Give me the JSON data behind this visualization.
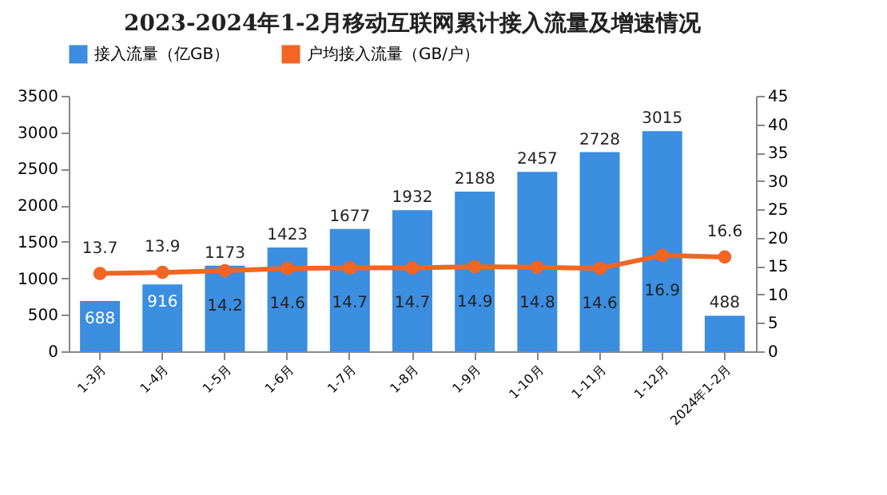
{
  "chart_data": {
    "type": "bar",
    "title": "2023-2024年1-2月移动互联网累计接入流量及增速情况",
    "categories": [
      "1-3月",
      "1-4月",
      "1-5月",
      "1-6月",
      "1-7月",
      "1-8月",
      "1-9月",
      "1-10月",
      "1-11月",
      "1-12月",
      "2024年1-2月"
    ],
    "series": [
      {
        "name": "接入流量（亿GB）",
        "color": "#3b8ee0",
        "values": [
          688,
          916,
          1173,
          1423,
          1677,
          1932,
          2188,
          2457,
          2728,
          3015,
          488
        ]
      },
      {
        "name": "户均接入流量（GB/户）",
        "type": "line",
        "axis": "y2",
        "color": "#f26522",
        "values": [
          13.7,
          13.9,
          14.2,
          14.6,
          14.7,
          14.7,
          14.9,
          14.8,
          14.6,
          16.9,
          16.6
        ]
      }
    ],
    "ylim": [
      0,
      3500
    ],
    "yticks": [
      0,
      500,
      1000,
      1500,
      2000,
      2500,
      3000,
      3500
    ],
    "y2lim": [
      0,
      45
    ],
    "y2ticks": [
      0,
      5,
      10,
      15,
      20,
      25,
      30,
      35,
      40,
      45
    ],
    "data_labels": true,
    "legend": "top",
    "marker": "circle",
    "grid": false
  }
}
